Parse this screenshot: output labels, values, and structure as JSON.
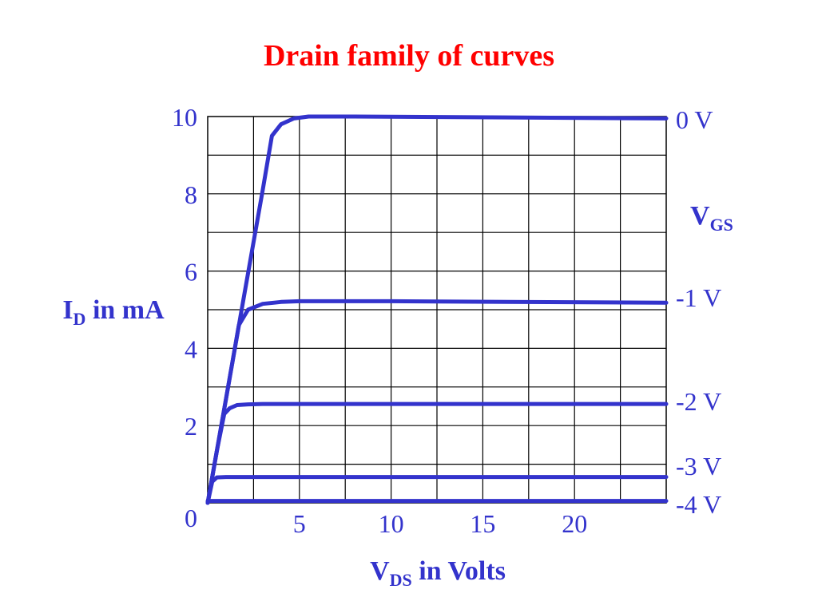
{
  "title": "Drain family of curves",
  "chart_data": {
    "type": "line",
    "title": "Drain family of curves",
    "xlabel": {
      "main": "V",
      "sub": "DS",
      "rest": " in Volts"
    },
    "ylabel": {
      "main": "I",
      "sub": "D",
      "rest": " in mA"
    },
    "legend_title": {
      "main": "V",
      "sub": "GS"
    },
    "xlim": [
      0,
      25
    ],
    "ylim": [
      0,
      10
    ],
    "x_ticks": [
      5,
      10,
      15,
      20
    ],
    "y_ticks": [
      0,
      2,
      4,
      6,
      8,
      10
    ],
    "grid": true,
    "colors": {
      "curves": "#3333cc",
      "text": "#3333cc",
      "title": "#ff0000",
      "grid": "#000000"
    },
    "series": [
      {
        "name": "0 V",
        "x": [
          0,
          1,
          2,
          3,
          3.5,
          4,
          4.7,
          5.5,
          8,
          25
        ],
        "y": [
          0,
          2.7,
          5.4,
          8.1,
          9.5,
          9.8,
          9.95,
          10,
          10,
          9.95
        ]
      },
      {
        "name": "-1 V",
        "x": [
          0,
          1,
          1.7,
          2.2,
          3,
          4,
          5,
          10,
          25
        ],
        "y": [
          0,
          2.7,
          4.6,
          5.0,
          5.15,
          5.2,
          5.22,
          5.22,
          5.18
        ]
      },
      {
        "name": "-2 V",
        "x": [
          0,
          0.5,
          0.9,
          1.2,
          1.6,
          2.2,
          3,
          25
        ],
        "y": [
          0,
          1.35,
          2.3,
          2.45,
          2.53,
          2.55,
          2.56,
          2.56
        ]
      },
      {
        "name": "-3 V",
        "x": [
          0,
          0.25,
          0.5,
          1,
          25
        ],
        "y": [
          0,
          0.55,
          0.66,
          0.67,
          0.67
        ]
      },
      {
        "name": "-4 V",
        "x": [
          0,
          25
        ],
        "y": [
          0.05,
          0.05
        ]
      }
    ]
  }
}
